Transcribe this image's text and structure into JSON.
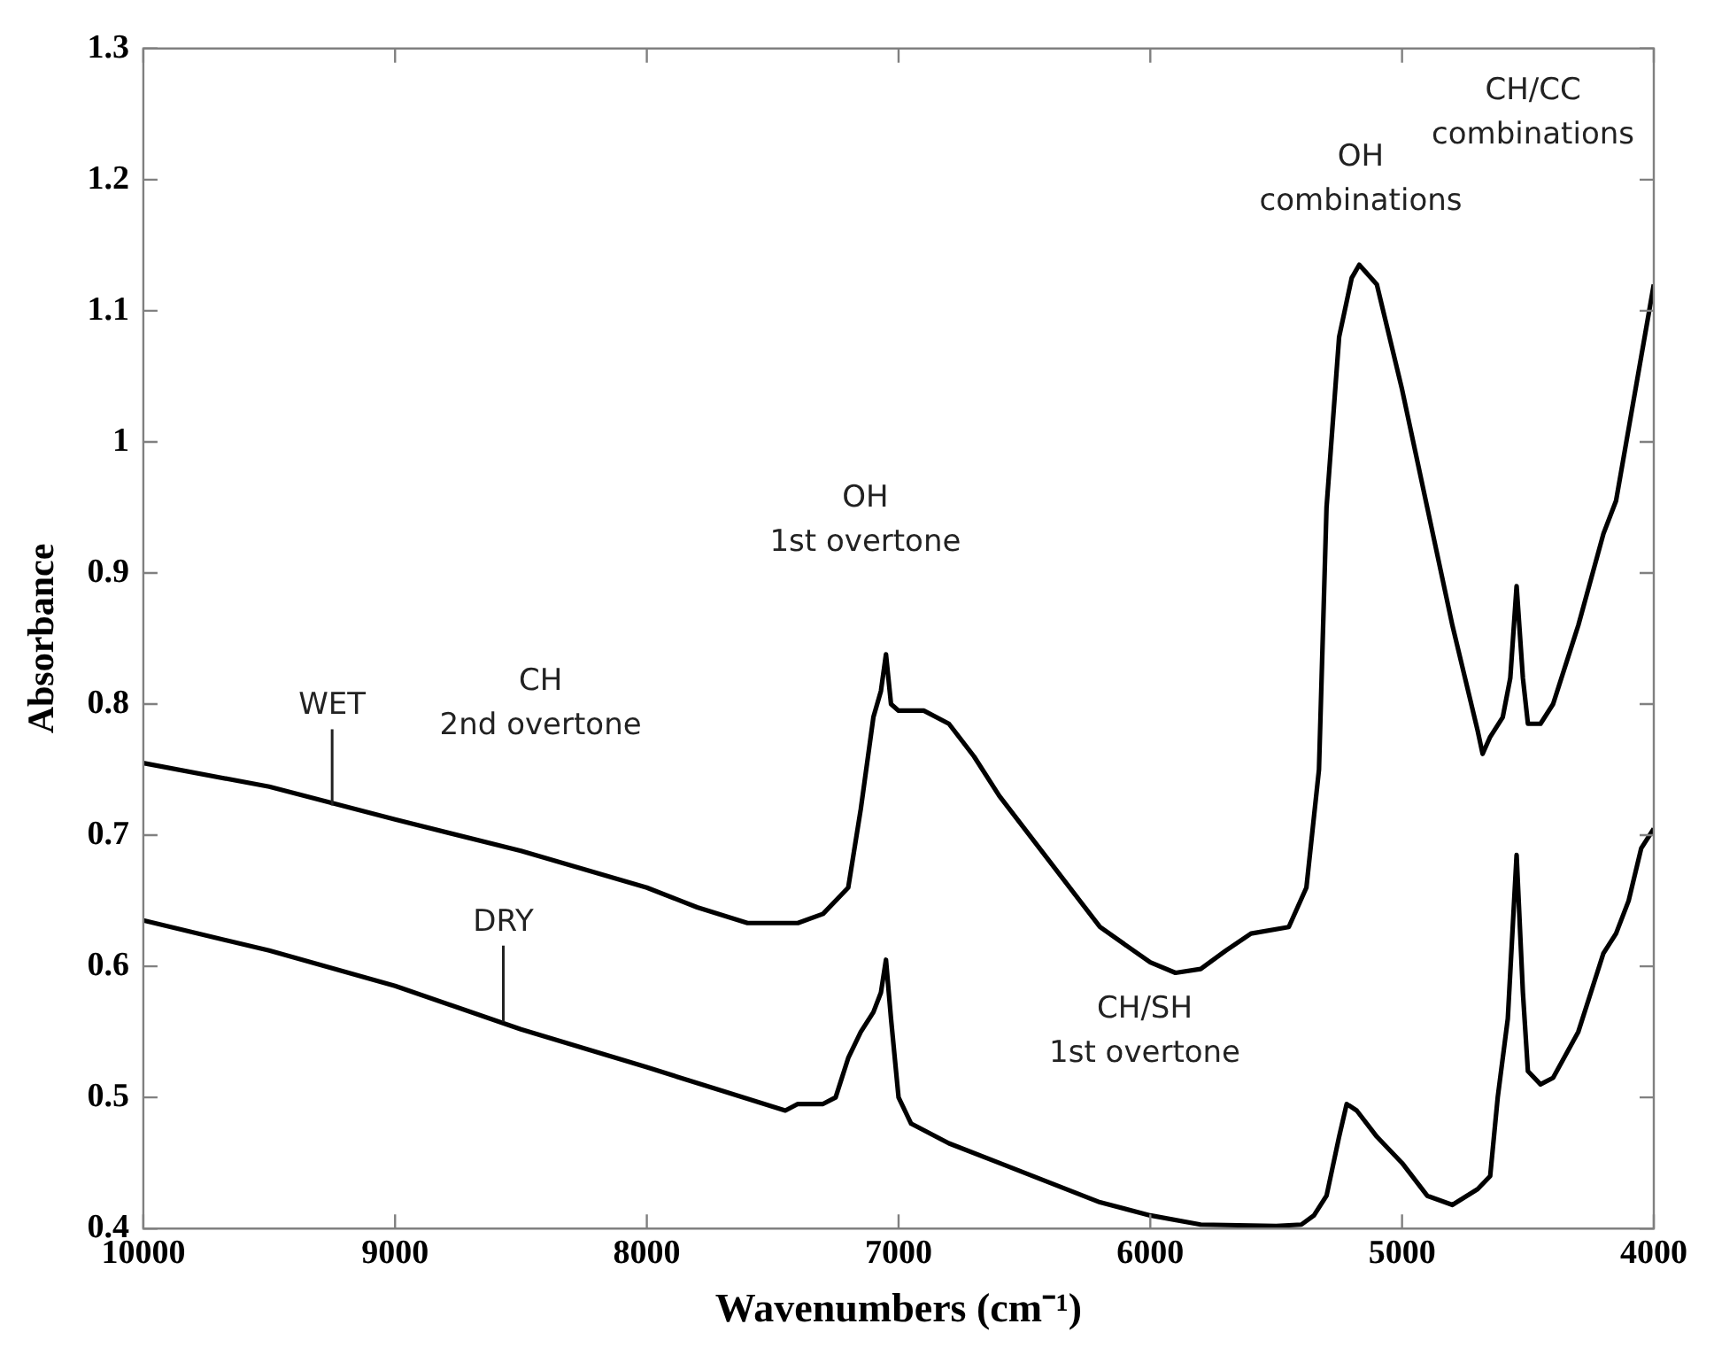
{
  "chart_data": {
    "type": "line",
    "xlabel": "Wavenumbers (cm⁻¹)",
    "ylabel": "Absorbance",
    "xlim": [
      10000,
      4000
    ],
    "xticks": [
      10000,
      9000,
      8000,
      7000,
      6000,
      5000,
      4000
    ],
    "ylim": [
      0.4,
      1.3
    ],
    "yticks": [
      0.4,
      0.5,
      0.6,
      0.7,
      0.8,
      0.9,
      1,
      1.1,
      1.2,
      1.3
    ],
    "series": [
      {
        "color": "#000000",
        "x": [
          10000,
          9500,
          9000,
          8500,
          8000,
          7800,
          7600,
          7400,
          7300,
          7200,
          7150,
          7100,
          7070,
          7050,
          7030,
          7000,
          6900,
          6800,
          6700,
          6600,
          6400,
          6200,
          6000,
          5900,
          5800,
          5700,
          5600,
          5450,
          5380,
          5330,
          5300,
          5250,
          5200,
          5170,
          5100,
          5000,
          4900,
          4800,
          4700,
          4680,
          4650,
          4600,
          4570,
          4545,
          4520,
          4500,
          4450,
          4400,
          4300,
          4200,
          4150,
          4100,
          4000
        ],
        "values": [
          0.755,
          0.737,
          0.712,
          0.688,
          0.66,
          0.645,
          0.633,
          0.633,
          0.64,
          0.66,
          0.72,
          0.79,
          0.81,
          0.838,
          0.8,
          0.795,
          0.795,
          0.785,
          0.76,
          0.73,
          0.68,
          0.63,
          0.603,
          0.595,
          0.598,
          0.612,
          0.625,
          0.63,
          0.66,
          0.75,
          0.95,
          1.08,
          1.125,
          1.135,
          1.12,
          1.04,
          0.95,
          0.86,
          0.78,
          0.762,
          0.775,
          0.79,
          0.82,
          0.89,
          0.82,
          0.785,
          0.785,
          0.8,
          0.86,
          0.93,
          0.955,
          1.01,
          1.12
        ]
      },
      {
        "color": "#000000",
        "x": [
          10000,
          9500,
          9000,
          8500,
          8000,
          7700,
          7450,
          7400,
          7300,
          7250,
          7200,
          7150,
          7100,
          7070,
          7050,
          7030,
          7000,
          6950,
          6800,
          6600,
          6400,
          6200,
          6000,
          5800,
          5500,
          5400,
          5350,
          5300,
          5250,
          5220,
          5180,
          5100,
          5000,
          4900,
          4800,
          4700,
          4650,
          4620,
          4580,
          4545,
          4520,
          4500,
          4450,
          4400,
          4300,
          4250,
          4200,
          4150,
          4100,
          4050,
          4000
        ],
        "values": [
          0.635,
          0.612,
          0.585,
          0.552,
          0.523,
          0.505,
          0.49,
          0.495,
          0.495,
          0.5,
          0.53,
          0.55,
          0.565,
          0.58,
          0.605,
          0.56,
          0.5,
          0.48,
          0.465,
          0.45,
          0.435,
          0.42,
          0.41,
          0.403,
          0.402,
          0.403,
          0.41,
          0.425,
          0.47,
          0.495,
          0.49,
          0.47,
          0.45,
          0.425,
          0.418,
          0.43,
          0.44,
          0.5,
          0.56,
          0.685,
          0.58,
          0.52,
          0.51,
          0.515,
          0.55,
          0.58,
          0.61,
          0.625,
          0.65,
          0.69,
          0.705
        ]
      }
    ],
    "annotations": [
      {
        "text": "WET",
        "x": 9250,
        "y": 0.72
      },
      {
        "text": "DRY",
        "x": 8570,
        "y": 0.555
      },
      "CH\n2nd overtone",
      "OH\n1st overtone",
      "OH\ncombinations",
      "CH/CC\ncombinations",
      "CH/SH\n1st overtone"
    ]
  }
}
